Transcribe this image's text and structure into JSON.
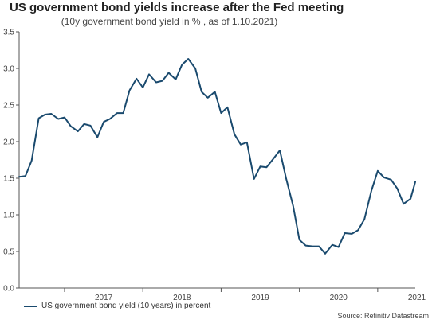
{
  "chart_data": {
    "type": "line",
    "title": "US government bond yields increase after the Fed meeting",
    "subtitle": "(10y government bond yield in % , as of 1.10.2021)",
    "xlabel": "",
    "ylabel": "",
    "xlim": [
      2016.42,
      2021.48
    ],
    "ylim": [
      0,
      3.5
    ],
    "y_ticks": [
      0.0,
      0.5,
      1.0,
      1.5,
      2.0,
      2.5,
      3.0,
      3.5
    ],
    "y_tick_labels": [
      "0.0",
      "0.5",
      "1.0",
      "1.5",
      "2.0",
      "2.5",
      "3.0",
      "3.5"
    ],
    "x_ticks": [
      2017,
      2018,
      2019,
      2020,
      2021
    ],
    "x_tick_labels": [
      "2017",
      "2018",
      "2019",
      "2020",
      "2021"
    ],
    "grid": false,
    "legend_position": "bottom-left",
    "color": "#1a4a6e",
    "series": [
      {
        "name": "US government bond yield (10 years) in percent",
        "x": [
          2016.42,
          2016.5,
          2016.58,
          2016.67,
          2016.75,
          2016.83,
          2016.92,
          2017.0,
          2017.08,
          2017.17,
          2017.25,
          2017.33,
          2017.42,
          2017.5,
          2017.58,
          2017.67,
          2017.75,
          2017.83,
          2017.92,
          2018.0,
          2018.08,
          2018.17,
          2018.25,
          2018.33,
          2018.42,
          2018.5,
          2018.58,
          2018.67,
          2018.75,
          2018.83,
          2018.92,
          2019.0,
          2019.08,
          2019.17,
          2019.25,
          2019.33,
          2019.42,
          2019.5,
          2019.58,
          2019.67,
          2019.75,
          2019.83,
          2019.92,
          2020.0,
          2020.08,
          2020.17,
          2020.25,
          2020.33,
          2020.42,
          2020.5,
          2020.58,
          2020.67,
          2020.75,
          2020.83,
          2020.92,
          2021.0,
          2021.08,
          2021.17,
          2021.25,
          2021.33,
          2021.42,
          2021.48
        ],
        "values": [
          1.52,
          1.53,
          1.74,
          2.32,
          2.37,
          2.38,
          2.31,
          2.33,
          2.21,
          2.14,
          2.24,
          2.22,
          2.06,
          2.27,
          2.31,
          2.39,
          2.39,
          2.7,
          2.86,
          2.74,
          2.92,
          2.81,
          2.83,
          2.94,
          2.85,
          3.05,
          3.13,
          3.0,
          2.68,
          2.6,
          2.68,
          2.39,
          2.47,
          2.1,
          1.96,
          1.99,
          1.49,
          1.66,
          1.65,
          1.77,
          1.88,
          1.5,
          1.12,
          0.66,
          0.58,
          0.57,
          0.57,
          0.47,
          0.59,
          0.56,
          0.75,
          0.74,
          0.79,
          0.94,
          1.33,
          1.6,
          1.51,
          1.48,
          1.36,
          1.15,
          1.22,
          1.45
        ]
      }
    ],
    "source": "Source: Refinitiv Datastream"
  }
}
